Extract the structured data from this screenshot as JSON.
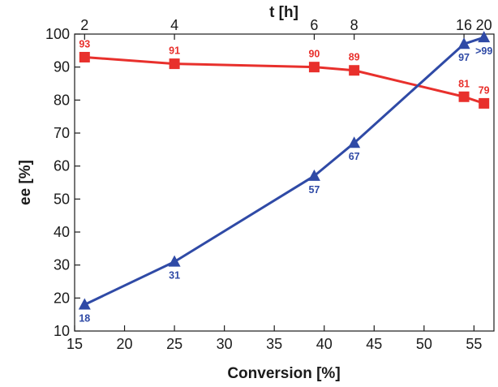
{
  "chart_data": {
    "type": "line",
    "xlabel": "Conversion [%]",
    "ylabel": "ee [%]",
    "top_xlabel": "t [h]",
    "xlim": [
      15,
      57
    ],
    "ylim": [
      10,
      100
    ],
    "xticks": [
      "15",
      "20",
      "25",
      "30",
      "35",
      "40",
      "45",
      "50",
      "55"
    ],
    "yticks": [
      "10",
      "20",
      "30",
      "40",
      "50",
      "60",
      "70",
      "80",
      "90",
      "100"
    ],
    "top_ticks": [
      {
        "x": 16,
        "label": "2"
      },
      {
        "x": 25,
        "label": "4"
      },
      {
        "x": 39,
        "label": "6"
      },
      {
        "x": 43,
        "label": "8"
      },
      {
        "x": 54,
        "label": "16"
      },
      {
        "x": 56,
        "label": "20"
      }
    ],
    "grid": false,
    "series": [
      {
        "marker": "square",
        "color": "#e8302c",
        "points": [
          {
            "x": 16,
            "y": 93,
            "label": "93"
          },
          {
            "x": 25,
            "y": 91,
            "label": "91"
          },
          {
            "x": 39,
            "y": 90,
            "label": "90"
          },
          {
            "x": 43,
            "y": 89,
            "label": "89"
          },
          {
            "x": 54,
            "y": 81,
            "label": "81"
          },
          {
            "x": 56,
            "y": 79,
            "label": "79"
          }
        ]
      },
      {
        "marker": "triangle",
        "color": "#2f4aa6",
        "points": [
          {
            "x": 16,
            "y": 18,
            "label": "18"
          },
          {
            "x": 25,
            "y": 31,
            "label": "31"
          },
          {
            "x": 39,
            "y": 57,
            "label": "57"
          },
          {
            "x": 43,
            "y": 67,
            "label": "67"
          },
          {
            "x": 54,
            "y": 97,
            "label": "97"
          },
          {
            "x": 56,
            "y": 99,
            "label": ">99"
          }
        ]
      }
    ]
  }
}
